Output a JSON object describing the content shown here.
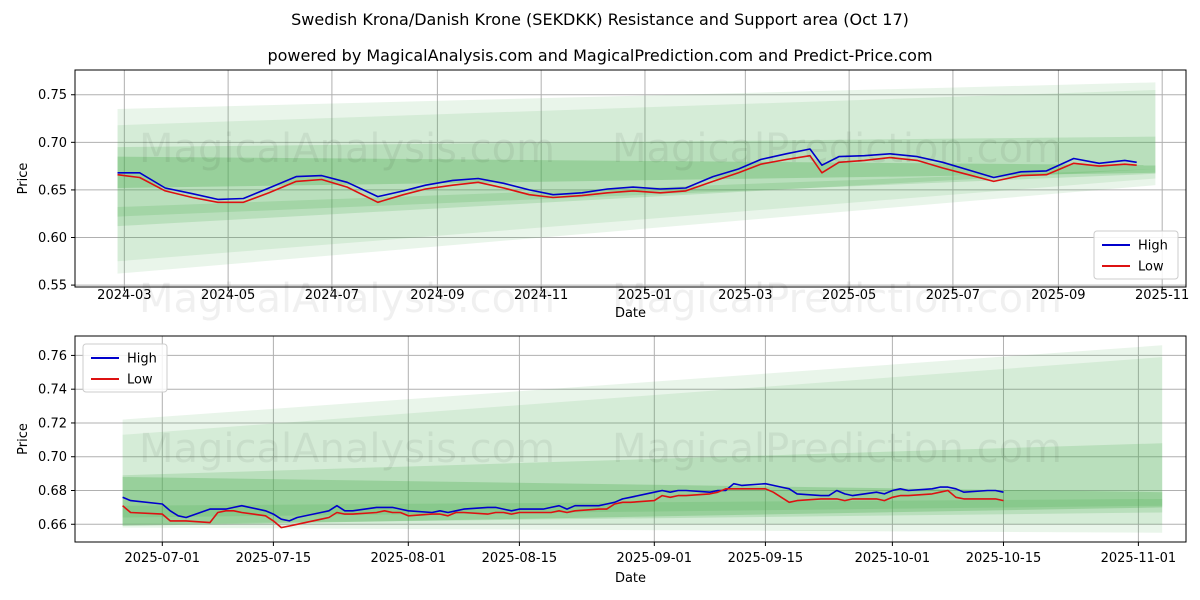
{
  "title": "Swedish Krona/Danish Krone (SEKDKK) Resistance and Support area (Oct 17)",
  "subtitle": "powered by MagicalAnalysis.com and MagicalPrediction.com and Predict-Price.com",
  "watermarks": [
    "MagicalAnalysis.com",
    "MagicalPrediction.com"
  ],
  "colors": {
    "high": "#0000cc",
    "low": "#dd1111",
    "band": "#4caf50",
    "grid": "#b0b0b0"
  },
  "chart_data": [
    {
      "type": "line",
      "name": "top-chart",
      "xlabel": "Date",
      "ylabel": "Price",
      "xlim": [
        "2024-02-01",
        "2025-11-15"
      ],
      "ylim": [
        0.548,
        0.776
      ],
      "xticks": [
        "2024-03",
        "2024-05",
        "2024-07",
        "2024-09",
        "2024-11",
        "2025-01",
        "2025-03",
        "2025-05",
        "2025-07",
        "2025-09",
        "2025-11"
      ],
      "yticks": [
        "0.55",
        "0.60",
        "0.65",
        "0.70",
        "0.75"
      ],
      "grid": true,
      "legend": {
        "position": "bottom-right",
        "entries": [
          "High",
          "Low"
        ]
      },
      "bands": [
        {
          "x": [
            "2024-02-26",
            "2025-10-28"
          ],
          "lower": [
            0.562,
            0.655
          ],
          "upper": [
            0.735,
            0.763
          ],
          "opacity": 0.12
        },
        {
          "x": [
            "2024-02-26",
            "2025-10-28"
          ],
          "lower": [
            0.575,
            0.662
          ],
          "upper": [
            0.718,
            0.755
          ],
          "opacity": 0.12
        },
        {
          "x": [
            "2024-02-26",
            "2025-10-28"
          ],
          "lower": [
            0.612,
            0.672
          ],
          "upper": [
            0.695,
            0.706
          ],
          "opacity": 0.2
        },
        {
          "x": [
            "2024-02-26",
            "2025-10-28"
          ],
          "lower": [
            0.652,
            0.668
          ],
          "upper": [
            0.685,
            0.676
          ],
          "opacity": 0.3
        },
        {
          "x": [
            "2024-02-26",
            "2025-10-28"
          ],
          "lower": [
            0.622,
            0.667
          ],
          "upper": [
            0.632,
            0.672
          ],
          "opacity": 0.2
        }
      ],
      "series": [
        {
          "name": "High",
          "x": [
            "2024-02-26",
            "2024-03-10",
            "2024-03-25",
            "2024-04-10",
            "2024-04-25",
            "2024-05-10",
            "2024-05-25",
            "2024-06-10",
            "2024-06-25",
            "2024-07-10",
            "2024-07-28",
            "2024-08-12",
            "2024-08-25",
            "2024-09-10",
            "2024-09-25",
            "2024-10-10",
            "2024-10-25",
            "2024-11-08",
            "2024-11-25",
            "2024-12-10",
            "2024-12-25",
            "2025-01-10",
            "2025-01-25",
            "2025-02-10",
            "2025-02-25",
            "2025-03-10",
            "2025-03-25",
            "2025-04-08",
            "2025-04-15",
            "2025-04-25",
            "2025-05-10",
            "2025-05-25",
            "2025-06-10",
            "2025-06-25",
            "2025-07-10",
            "2025-07-25",
            "2025-08-10",
            "2025-08-25",
            "2025-09-10",
            "2025-09-25",
            "2025-10-10",
            "2025-10-17"
          ],
          "y": [
            0.668,
            0.668,
            0.652,
            0.646,
            0.64,
            0.641,
            0.652,
            0.664,
            0.665,
            0.658,
            0.643,
            0.649,
            0.655,
            0.66,
            0.662,
            0.657,
            0.65,
            0.645,
            0.647,
            0.651,
            0.653,
            0.651,
            0.652,
            0.664,
            0.672,
            0.682,
            0.688,
            0.693,
            0.676,
            0.685,
            0.686,
            0.688,
            0.685,
            0.679,
            0.671,
            0.663,
            0.669,
            0.67,
            0.683,
            0.678,
            0.681,
            0.679
          ]
        },
        {
          "name": "Low",
          "x": [
            "2024-02-26",
            "2024-03-10",
            "2024-03-25",
            "2024-04-10",
            "2024-04-25",
            "2024-05-10",
            "2024-05-25",
            "2024-06-10",
            "2024-06-25",
            "2024-07-10",
            "2024-07-28",
            "2024-08-12",
            "2024-08-25",
            "2024-09-10",
            "2024-09-25",
            "2024-10-10",
            "2024-10-25",
            "2024-11-08",
            "2024-11-25",
            "2024-12-10",
            "2024-12-25",
            "2025-01-10",
            "2025-01-25",
            "2025-02-10",
            "2025-02-25",
            "2025-03-10",
            "2025-03-25",
            "2025-04-08",
            "2025-04-15",
            "2025-04-25",
            "2025-05-10",
            "2025-05-25",
            "2025-06-10",
            "2025-06-25",
            "2025-07-10",
            "2025-07-25",
            "2025-08-10",
            "2025-08-25",
            "2025-09-10",
            "2025-09-25",
            "2025-10-10",
            "2025-10-17"
          ],
          "y": [
            0.666,
            0.663,
            0.649,
            0.642,
            0.637,
            0.637,
            0.647,
            0.659,
            0.661,
            0.653,
            0.637,
            0.645,
            0.651,
            0.655,
            0.658,
            0.652,
            0.645,
            0.642,
            0.644,
            0.647,
            0.649,
            0.647,
            0.649,
            0.659,
            0.668,
            0.677,
            0.682,
            0.686,
            0.668,
            0.679,
            0.681,
            0.684,
            0.681,
            0.673,
            0.666,
            0.659,
            0.665,
            0.666,
            0.678,
            0.675,
            0.677,
            0.676
          ]
        }
      ]
    },
    {
      "type": "line",
      "name": "bottom-chart",
      "xlabel": "Date",
      "ylabel": "Price",
      "xlim": [
        "2025-06-20",
        "2025-11-07"
      ],
      "ylim": [
        0.6495,
        0.7715
      ],
      "xticks": [
        "2025-07-01",
        "2025-07-15",
        "2025-08-01",
        "2025-08-15",
        "2025-09-01",
        "2025-09-15",
        "2025-10-01",
        "2025-10-15",
        "2025-11-01"
      ],
      "yticks": [
        "0.66",
        "0.68",
        "0.70",
        "0.72",
        "0.74",
        "0.76"
      ],
      "grid": true,
      "legend": {
        "position": "top-left",
        "entries": [
          "High",
          "Low"
        ]
      },
      "bands": [
        {
          "x": [
            "2025-06-26",
            "2025-11-04"
          ],
          "lower": [
            0.658,
            0.655
          ],
          "upper": [
            0.722,
            0.766
          ],
          "opacity": 0.12
        },
        {
          "x": [
            "2025-06-26",
            "2025-11-04"
          ],
          "lower": [
            0.66,
            0.66
          ],
          "upper": [
            0.713,
            0.759
          ],
          "opacity": 0.12
        },
        {
          "x": [
            "2025-06-26",
            "2025-11-04"
          ],
          "lower": [
            0.66,
            0.667
          ],
          "upper": [
            0.689,
            0.708
          ],
          "opacity": 0.2
        },
        {
          "x": [
            "2025-06-26",
            "2025-11-04"
          ],
          "lower": [
            0.659,
            0.67
          ],
          "upper": [
            0.688,
            0.679
          ],
          "opacity": 0.3
        },
        {
          "x": [
            "2025-06-26",
            "2025-11-04"
          ],
          "lower": [
            0.664,
            0.671
          ],
          "upper": [
            0.671,
            0.675
          ],
          "opacity": 0.2
        }
      ],
      "series": [
        {
          "name": "High",
          "x": [
            "2025-06-26",
            "2025-06-27",
            "2025-07-01",
            "2025-07-02",
            "2025-07-03",
            "2025-07-04",
            "2025-07-07",
            "2025-07-08",
            "2025-07-09",
            "2025-07-10",
            "2025-07-11",
            "2025-07-14",
            "2025-07-15",
            "2025-07-16",
            "2025-07-17",
            "2025-07-18",
            "2025-07-21",
            "2025-07-22",
            "2025-07-23",
            "2025-07-24",
            "2025-07-25",
            "2025-07-28",
            "2025-07-29",
            "2025-07-30",
            "2025-07-31",
            "2025-08-01",
            "2025-08-04",
            "2025-08-05",
            "2025-08-06",
            "2025-08-07",
            "2025-08-08",
            "2025-08-11",
            "2025-08-12",
            "2025-08-13",
            "2025-08-14",
            "2025-08-15",
            "2025-08-18",
            "2025-08-19",
            "2025-08-20",
            "2025-08-21",
            "2025-08-22",
            "2025-08-25",
            "2025-08-26",
            "2025-08-27",
            "2025-08-28",
            "2025-08-29",
            "2025-09-01",
            "2025-09-02",
            "2025-09-03",
            "2025-09-04",
            "2025-09-05",
            "2025-09-08",
            "2025-09-09",
            "2025-09-10",
            "2025-09-11",
            "2025-09-12",
            "2025-09-15",
            "2025-09-16",
            "2025-09-17",
            "2025-09-18",
            "2025-09-19",
            "2025-09-22",
            "2025-09-23",
            "2025-09-24",
            "2025-09-25",
            "2025-09-26",
            "2025-09-29",
            "2025-09-30",
            "2025-10-01",
            "2025-10-02",
            "2025-10-03",
            "2025-10-06",
            "2025-10-07",
            "2025-10-08",
            "2025-10-09",
            "2025-10-10",
            "2025-10-13",
            "2025-10-14",
            "2025-10-15"
          ],
          "y": [
            0.676,
            0.674,
            0.672,
            0.668,
            0.665,
            0.664,
            0.669,
            0.669,
            0.669,
            0.67,
            0.671,
            0.668,
            0.666,
            0.663,
            0.662,
            0.664,
            0.667,
            0.668,
            0.671,
            0.668,
            0.668,
            0.67,
            0.67,
            0.67,
            0.669,
            0.668,
            0.667,
            0.668,
            0.667,
            0.668,
            0.669,
            0.67,
            0.67,
            0.669,
            0.668,
            0.669,
            0.669,
            0.67,
            0.671,
            0.669,
            0.671,
            0.671,
            0.672,
            0.673,
            0.675,
            0.676,
            0.679,
            0.68,
            0.679,
            0.68,
            0.68,
            0.679,
            0.68,
            0.68,
            0.684,
            0.683,
            0.684,
            0.683,
            0.682,
            0.681,
            0.678,
            0.677,
            0.677,
            0.68,
            0.678,
            0.677,
            0.679,
            0.678,
            0.68,
            0.681,
            0.68,
            0.681,
            0.682,
            0.682,
            0.681,
            0.679,
            0.68,
            0.68,
            0.679
          ]
        },
        {
          "name": "Low",
          "x": [
            "2025-06-26",
            "2025-06-27",
            "2025-07-01",
            "2025-07-02",
            "2025-07-03",
            "2025-07-04",
            "2025-07-07",
            "2025-07-08",
            "2025-07-09",
            "2025-07-10",
            "2025-07-11",
            "2025-07-14",
            "2025-07-15",
            "2025-07-16",
            "2025-07-17",
            "2025-07-18",
            "2025-07-21",
            "2025-07-22",
            "2025-07-23",
            "2025-07-24",
            "2025-07-25",
            "2025-07-28",
            "2025-07-29",
            "2025-07-30",
            "2025-07-31",
            "2025-08-01",
            "2025-08-04",
            "2025-08-05",
            "2025-08-06",
            "2025-08-07",
            "2025-08-08",
            "2025-08-11",
            "2025-08-12",
            "2025-08-13",
            "2025-08-14",
            "2025-08-15",
            "2025-08-18",
            "2025-08-19",
            "2025-08-20",
            "2025-08-21",
            "2025-08-22",
            "2025-08-25",
            "2025-08-26",
            "2025-08-27",
            "2025-08-28",
            "2025-08-29",
            "2025-09-01",
            "2025-09-02",
            "2025-09-03",
            "2025-09-04",
            "2025-09-05",
            "2025-09-08",
            "2025-09-09",
            "2025-09-10",
            "2025-09-11",
            "2025-09-12",
            "2025-09-15",
            "2025-09-16",
            "2025-09-17",
            "2025-09-18",
            "2025-09-19",
            "2025-09-22",
            "2025-09-23",
            "2025-09-24",
            "2025-09-25",
            "2025-09-26",
            "2025-09-29",
            "2025-09-30",
            "2025-10-01",
            "2025-10-02",
            "2025-10-03",
            "2025-10-06",
            "2025-10-07",
            "2025-10-08",
            "2025-10-09",
            "2025-10-10",
            "2025-10-13",
            "2025-10-14",
            "2025-10-15"
          ],
          "y": [
            0.671,
            0.667,
            0.666,
            0.662,
            0.662,
            0.662,
            0.661,
            0.667,
            0.668,
            0.668,
            0.667,
            0.665,
            0.662,
            0.658,
            0.659,
            0.66,
            0.663,
            0.664,
            0.667,
            0.666,
            0.666,
            0.667,
            0.668,
            0.667,
            0.667,
            0.665,
            0.666,
            0.666,
            0.665,
            0.667,
            0.667,
            0.666,
            0.667,
            0.667,
            0.666,
            0.667,
            0.667,
            0.667,
            0.668,
            0.667,
            0.668,
            0.669,
            0.669,
            0.672,
            0.673,
            0.673,
            0.674,
            0.677,
            0.676,
            0.677,
            0.677,
            0.678,
            0.679,
            0.681,
            0.681,
            0.681,
            0.681,
            0.679,
            0.676,
            0.673,
            0.674,
            0.675,
            0.675,
            0.675,
            0.674,
            0.675,
            0.675,
            0.674,
            0.676,
            0.677,
            0.677,
            0.678,
            0.679,
            0.68,
            0.676,
            0.675,
            0.675,
            0.675,
            0.674
          ]
        }
      ]
    }
  ]
}
